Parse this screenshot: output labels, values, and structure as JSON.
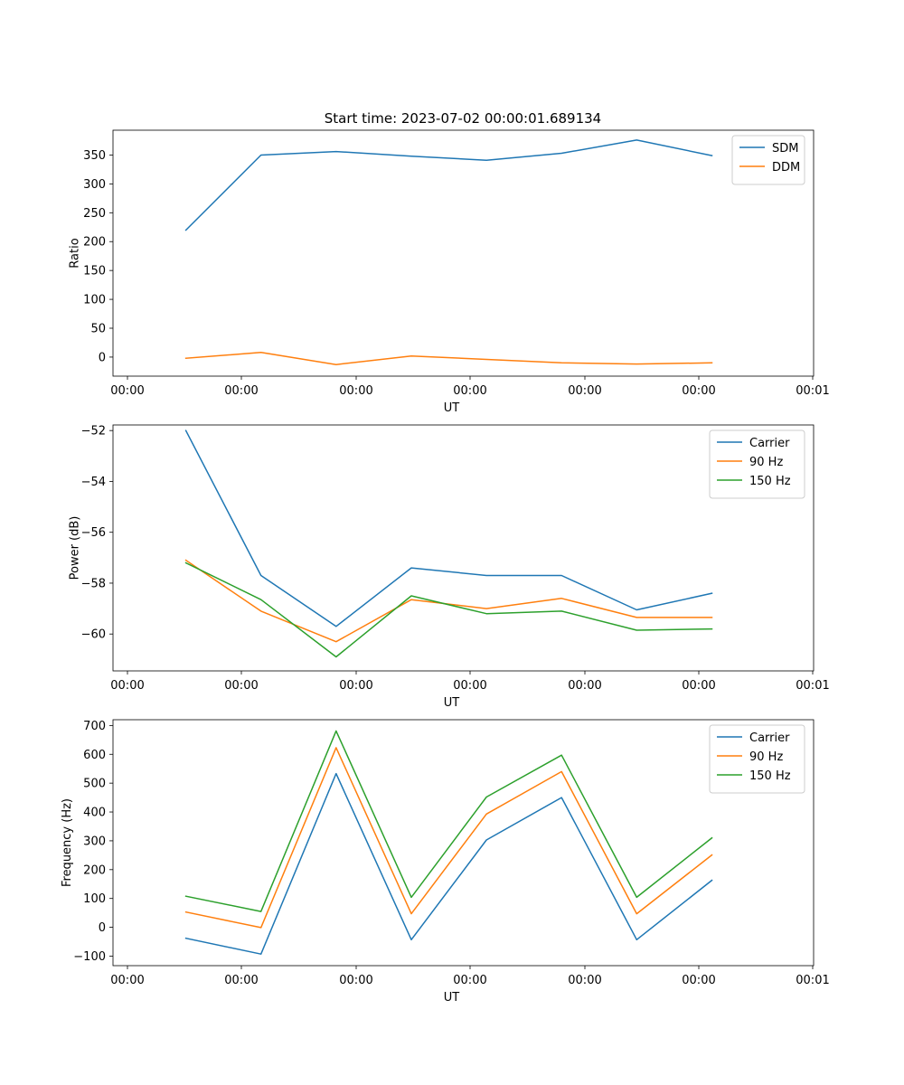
{
  "figure": {
    "title": "Start time: 2023-07-02 00:00:01.689134"
  },
  "chart_data": [
    {
      "type": "line",
      "name": "ratio",
      "xlabel": "UT",
      "ylabel": "Ratio",
      "x_tick_labels": [
        "00:00",
        "00:00",
        "00:00",
        "00:00",
        "00:00",
        "00:00",
        "00:01"
      ],
      "xlim": [
        -0.13,
        5.93
      ],
      "ylim": [
        -33,
        393
      ],
      "y_ticks": [
        0,
        50,
        100,
        150,
        200,
        250,
        300,
        350
      ],
      "x": [
        0.5,
        1.15,
        1.8,
        2.45,
        3.1,
        3.75,
        4.4,
        5.05
      ],
      "legend": "top-right",
      "series": [
        {
          "name": "SDM",
          "color": "#1f77b4",
          "values": [
            220,
            350,
            356,
            348,
            341,
            353,
            376,
            349
          ]
        },
        {
          "name": "DDM",
          "color": "#ff7f0e",
          "values": [
            -2,
            8,
            -13,
            2,
            -4,
            -10,
            -12,
            -10
          ]
        }
      ]
    },
    {
      "type": "line",
      "name": "power",
      "xlabel": "UT",
      "ylabel": "Power (dB)",
      "x_tick_labels": [
        "00:00",
        "00:00",
        "00:00",
        "00:00",
        "00:00",
        "00:00",
        "00:01"
      ],
      "xlim": [
        -0.13,
        5.93
      ],
      "ylim": [
        -61.45,
        -51.78
      ],
      "y_ticks": [
        -60,
        -58,
        -56,
        -54,
        -52
      ],
      "y_tick_labels": [
        "−60",
        "−58",
        "−56",
        "−54",
        "−52"
      ],
      "x": [
        0.5,
        1.15,
        1.8,
        2.45,
        3.1,
        3.75,
        4.4,
        5.05
      ],
      "legend": "top-right",
      "series": [
        {
          "name": "Carrier",
          "color": "#1f77b4",
          "values": [
            -52.0,
            -57.7,
            -59.7,
            -57.4,
            -57.7,
            -57.7,
            -59.05,
            -58.4
          ]
        },
        {
          "name": "90 Hz",
          "color": "#ff7f0e",
          "values": [
            -57.1,
            -59.1,
            -60.3,
            -58.65,
            -59.0,
            -58.6,
            -59.35,
            -59.35
          ]
        },
        {
          "name": "150 Hz",
          "color": "#2ca02c",
          "values": [
            -57.2,
            -58.65,
            -60.9,
            -58.5,
            -59.2,
            -59.1,
            -59.85,
            -59.8
          ]
        }
      ]
    },
    {
      "type": "line",
      "name": "frequency",
      "xlabel": "UT",
      "ylabel": "Frequency (Hz)",
      "x_tick_labels": [
        "00:00",
        "00:00",
        "00:00",
        "00:00",
        "00:00",
        "00:00",
        "00:01"
      ],
      "xlim": [
        -0.13,
        5.93
      ],
      "ylim": [
        -133,
        720
      ],
      "y_ticks": [
        -100,
        0,
        100,
        200,
        300,
        400,
        500,
        600,
        700
      ],
      "y_tick_labels": [
        "−100",
        "0",
        "100",
        "200",
        "300",
        "400",
        "500",
        "600",
        "700"
      ],
      "x": [
        0.5,
        1.15,
        1.8,
        2.45,
        3.1,
        3.75,
        4.4,
        5.05
      ],
      "legend": "top-right",
      "series": [
        {
          "name": "Carrier",
          "color": "#1f77b4",
          "values": [
            -38,
            -93,
            533,
            -43,
            303,
            450,
            -43,
            163
          ]
        },
        {
          "name": "90 Hz",
          "color": "#ff7f0e",
          "values": [
            53,
            -1,
            623,
            47,
            393,
            540,
            47,
            251
          ]
        },
        {
          "name": "150 Hz",
          "color": "#2ca02c",
          "values": [
            108,
            55,
            681,
            104,
            452,
            597,
            104,
            310
          ]
        }
      ]
    }
  ]
}
